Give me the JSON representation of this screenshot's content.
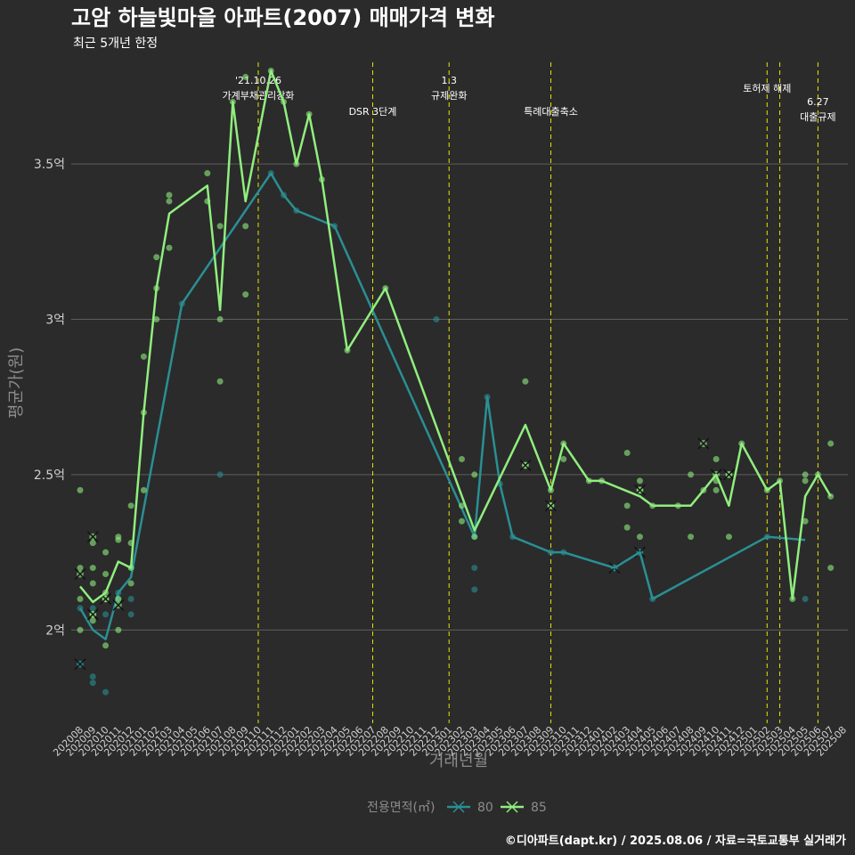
{
  "chart_data": {
    "type": "line",
    "title": "고암 하늘빛마을 아파트(2007) 매매가격 변화",
    "subtitle": "최근 5개년 한정",
    "xlabel": "거래년월",
    "ylabel": "평균가(원)",
    "caption": "©디아파트(dapt.kr) / 2025.08.06 / 자료=국토교통부 실거래가",
    "legend_title": "전용면적(㎡)",
    "legend_position": "bottom",
    "grid": true,
    "ylim": [
      1.7,
      3.85
    ],
    "y_ticks": [
      {
        "value": 2.0,
        "label": "2억"
      },
      {
        "value": 2.5,
        "label": "2.5억"
      },
      {
        "value": 3.0,
        "label": "3억"
      },
      {
        "value": 3.5,
        "label": "3.5억"
      }
    ],
    "categories": [
      "202008",
      "202009",
      "202010",
      "202011",
      "202012",
      "202101",
      "202102",
      "202103",
      "202104",
      "202105",
      "202106",
      "202107",
      "202108",
      "202109",
      "202110",
      "202111",
      "202112",
      "202201",
      "202202",
      "202203",
      "202204",
      "202205",
      "202206",
      "202207",
      "202208",
      "202209",
      "202210",
      "202211",
      "202212",
      "202301",
      "202302",
      "202303",
      "202304",
      "202305",
      "202306",
      "202307",
      "202308",
      "202309",
      "202310",
      "202311",
      "202312",
      "202401",
      "202402",
      "202403",
      "202404",
      "202405",
      "202406",
      "202407",
      "202408",
      "202409",
      "202410",
      "202411",
      "202412",
      "202501",
      "202502",
      "202503",
      "202504",
      "202505",
      "202506",
      "202507",
      "202508"
    ],
    "events": [
      {
        "x": "202110",
        "lines": [
          "'21.10.26",
          "가계부채관리강화"
        ]
      },
      {
        "x": "202207",
        "lines": [
          "DSR 3단계"
        ]
      },
      {
        "x": "202301",
        "lines": [
          "1.3",
          "규제완화"
        ]
      },
      {
        "x": "202309",
        "lines": [
          "특례대출축소"
        ]
      },
      {
        "x": "202502",
        "lines": [
          "토허제 해제"
        ]
      },
      {
        "x": "202503",
        "lines": []
      },
      {
        "x": "202506",
        "lines": [
          "6.27",
          "대출규제"
        ]
      }
    ],
    "series": [
      {
        "name": "80",
        "color": "#2a8f93",
        "line": [
          [
            "202008",
            2.07
          ],
          [
            "202009",
            2.0
          ],
          [
            "202010",
            1.97
          ],
          [
            "202011",
            2.12
          ],
          [
            "202012",
            2.17
          ],
          [
            "202104",
            3.05
          ],
          [
            "202111",
            3.47
          ],
          [
            "202112",
            3.4
          ],
          [
            "202201",
            3.35
          ],
          [
            "202204",
            3.3
          ],
          [
            "202303",
            2.3
          ],
          [
            "202304",
            2.75
          ],
          [
            "202305",
            2.47
          ],
          [
            "202306",
            2.3
          ],
          [
            "202309",
            2.25
          ],
          [
            "202310",
            2.25
          ],
          [
            "202402",
            2.2
          ],
          [
            "202404",
            2.25
          ],
          [
            "202405",
            2.1
          ],
          [
            "202502",
            2.3
          ],
          [
            "202505",
            2.29
          ]
        ],
        "points": [
          [
            "202008",
            2.07
          ],
          [
            "202008",
            1.89
          ],
          [
            "202009",
            2.07
          ],
          [
            "202009",
            1.85
          ],
          [
            "202009",
            1.83
          ],
          [
            "202010",
            2.05
          ],
          [
            "202010",
            1.8
          ],
          [
            "202011",
            2.12
          ],
          [
            "202011",
            2.1
          ],
          [
            "202012",
            2.1
          ],
          [
            "202012",
            2.05
          ],
          [
            "202012",
            2.2
          ],
          [
            "202104",
            3.05
          ],
          [
            "202107",
            2.5
          ],
          [
            "202111",
            3.47
          ],
          [
            "202112",
            3.4
          ],
          [
            "202201",
            3.35
          ],
          [
            "202204",
            3.3
          ],
          [
            "202212",
            3.0
          ],
          [
            "202303",
            2.3
          ],
          [
            "202303",
            2.2
          ],
          [
            "202303",
            2.13
          ],
          [
            "202304",
            2.75
          ],
          [
            "202305",
            2.47
          ],
          [
            "202306",
            2.3
          ],
          [
            "202309",
            2.25
          ],
          [
            "202310",
            2.25
          ],
          [
            "202402",
            2.2
          ],
          [
            "202404",
            2.25
          ],
          [
            "202405",
            2.1
          ],
          [
            "202502",
            2.3
          ],
          [
            "202505",
            2.1
          ]
        ],
        "crosses": [
          [
            "202008",
            1.89
          ],
          [
            "202402",
            2.2
          ],
          [
            "202404",
            2.25
          ]
        ]
      },
      {
        "name": "85",
        "color": "#90ee7e",
        "line": [
          [
            "202008",
            2.14
          ],
          [
            "202009",
            2.09
          ],
          [
            "202010",
            2.12
          ],
          [
            "202011",
            2.22
          ],
          [
            "202012",
            2.2
          ],
          [
            "202101",
            2.7
          ],
          [
            "202102",
            3.1
          ],
          [
            "202103",
            3.34
          ],
          [
            "202106",
            3.43
          ],
          [
            "202107",
            3.03
          ],
          [
            "202108",
            3.7
          ],
          [
            "202109",
            3.38
          ],
          [
            "202111",
            3.8
          ],
          [
            "202112",
            3.7
          ],
          [
            "202201",
            3.5
          ],
          [
            "202202",
            3.66
          ],
          [
            "202203",
            3.45
          ],
          [
            "202205",
            2.9
          ],
          [
            "202208",
            3.1
          ],
          [
            "202303",
            2.32
          ],
          [
            "202307",
            2.66
          ],
          [
            "202309",
            2.45
          ],
          [
            "202310",
            2.6
          ],
          [
            "202312",
            2.48
          ],
          [
            "202401",
            2.48
          ],
          [
            "202404",
            2.43
          ],
          [
            "202405",
            2.4
          ],
          [
            "202407",
            2.4
          ],
          [
            "202408",
            2.4
          ],
          [
            "202409",
            2.45
          ],
          [
            "202410",
            2.5
          ],
          [
            "202411",
            2.4
          ],
          [
            "202412",
            2.6
          ],
          [
            "202502",
            2.45
          ],
          [
            "202503",
            2.48
          ],
          [
            "202504",
            2.1
          ],
          [
            "202505",
            2.43
          ],
          [
            "202506",
            2.5
          ],
          [
            "202507",
            2.43
          ]
        ],
        "points": [
          [
            "202008",
            2.45
          ],
          [
            "202008",
            2.2
          ],
          [
            "202008",
            2.1
          ],
          [
            "202008",
            2.0
          ],
          [
            "202009",
            2.28
          ],
          [
            "202009",
            2.2
          ],
          [
            "202009",
            2.15
          ],
          [
            "202009",
            2.05
          ],
          [
            "202009",
            2.03
          ],
          [
            "202010",
            2.25
          ],
          [
            "202010",
            2.18
          ],
          [
            "202010",
            2.12
          ],
          [
            "202010",
            2.1
          ],
          [
            "202010",
            1.95
          ],
          [
            "202011",
            2.3
          ],
          [
            "202011",
            2.29
          ],
          [
            "202011",
            2.1
          ],
          [
            "202011",
            2.0
          ],
          [
            "202012",
            2.4
          ],
          [
            "202012",
            2.28
          ],
          [
            "202012",
            2.2
          ],
          [
            "202012",
            2.15
          ],
          [
            "202101",
            2.88
          ],
          [
            "202101",
            2.7
          ],
          [
            "202101",
            2.45
          ],
          [
            "202102",
            3.2
          ],
          [
            "202102",
            3.1
          ],
          [
            "202102",
            3.0
          ],
          [
            "202103",
            3.4
          ],
          [
            "202103",
            3.38
          ],
          [
            "202103",
            3.23
          ],
          [
            "202106",
            3.47
          ],
          [
            "202106",
            3.38
          ],
          [
            "202107",
            3.3
          ],
          [
            "202107",
            3.0
          ],
          [
            "202107",
            2.8
          ],
          [
            "202108",
            3.7
          ],
          [
            "202109",
            3.78
          ],
          [
            "202109",
            3.3
          ],
          [
            "202109",
            3.08
          ],
          [
            "202111",
            3.8
          ],
          [
            "202112",
            3.7
          ],
          [
            "202201",
            3.5
          ],
          [
            "202202",
            3.66
          ],
          [
            "202203",
            3.45
          ],
          [
            "202205",
            2.9
          ],
          [
            "202208",
            3.1
          ],
          [
            "202302",
            2.55
          ],
          [
            "202302",
            2.4
          ],
          [
            "202302",
            2.35
          ],
          [
            "202303",
            2.5
          ],
          [
            "202303",
            2.3
          ],
          [
            "202307",
            2.8
          ],
          [
            "202307",
            2.53
          ],
          [
            "202309",
            2.45
          ],
          [
            "202309",
            2.4
          ],
          [
            "202310",
            2.6
          ],
          [
            "202310",
            2.55
          ],
          [
            "202312",
            2.48
          ],
          [
            "202401",
            2.48
          ],
          [
            "202403",
            2.57
          ],
          [
            "202403",
            2.4
          ],
          [
            "202403",
            2.33
          ],
          [
            "202404",
            2.48
          ],
          [
            "202404",
            2.45
          ],
          [
            "202404",
            2.3
          ],
          [
            "202405",
            2.4
          ],
          [
            "202407",
            2.4
          ],
          [
            "202408",
            2.5
          ],
          [
            "202408",
            2.3
          ],
          [
            "202409",
            2.45
          ],
          [
            "202410",
            2.55
          ],
          [
            "202410",
            2.48
          ],
          [
            "202410",
            2.45
          ],
          [
            "202411",
            2.5
          ],
          [
            "202411",
            2.3
          ],
          [
            "202412",
            2.6
          ],
          [
            "202502",
            2.45
          ],
          [
            "202503",
            2.48
          ],
          [
            "202504",
            2.1
          ],
          [
            "202505",
            2.5
          ],
          [
            "202505",
            2.48
          ],
          [
            "202505",
            2.35
          ],
          [
            "202506",
            2.5
          ],
          [
            "202507",
            2.6
          ],
          [
            "202507",
            2.43
          ],
          [
            "202507",
            2.2
          ]
        ],
        "crosses": [
          [
            "202008",
            2.18
          ],
          [
            "202009",
            2.3
          ],
          [
            "202009",
            2.05
          ],
          [
            "202010",
            2.1
          ],
          [
            "202011",
            2.08
          ],
          [
            "202307",
            2.53
          ],
          [
            "202309",
            2.4
          ],
          [
            "202404",
            2.45
          ],
          [
            "202409",
            2.6
          ],
          [
            "202410",
            2.5
          ],
          [
            "202411",
            2.5
          ]
        ]
      }
    ]
  }
}
